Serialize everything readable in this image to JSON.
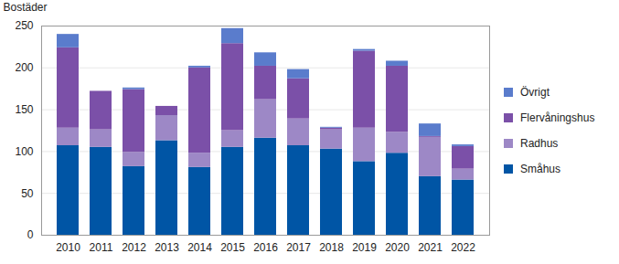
{
  "chart_data": {
    "type": "bar",
    "stacked": true,
    "grid": true,
    "legend": "right",
    "y_label": "Bostäder",
    "categories": [
      "2010",
      "2011",
      "2012",
      "2013",
      "2014",
      "2015",
      "2016",
      "2017",
      "2018",
      "2019",
      "2020",
      "2021",
      "2022"
    ],
    "ylim": [
      0,
      250
    ],
    "yticks": [
      0,
      50,
      100,
      150,
      200,
      250
    ],
    "series": [
      {
        "name": "Småhus",
        "color": "#0055a5",
        "values": [
          107,
          105,
          82,
          113,
          81,
          105,
          116,
          107,
          103,
          88,
          98,
          70,
          66
        ]
      },
      {
        "name": "Radhus",
        "color": "#9d88c6",
        "values": [
          21,
          21,
          17,
          30,
          17,
          20,
          46,
          32,
          23,
          40,
          25,
          47,
          13
        ]
      },
      {
        "name": "Flervåningshus",
        "color": "#7b50a8",
        "values": [
          96,
          46,
          75,
          11,
          102,
          104,
          40,
          48,
          2,
          92,
          79,
          1,
          27
        ]
      },
      {
        "name": "Övrigt",
        "color": "#5a7ccc",
        "values": [
          16,
          0,
          2,
          0,
          2,
          18,
          16,
          11,
          1,
          2,
          6,
          15,
          2
        ]
      }
    ]
  }
}
